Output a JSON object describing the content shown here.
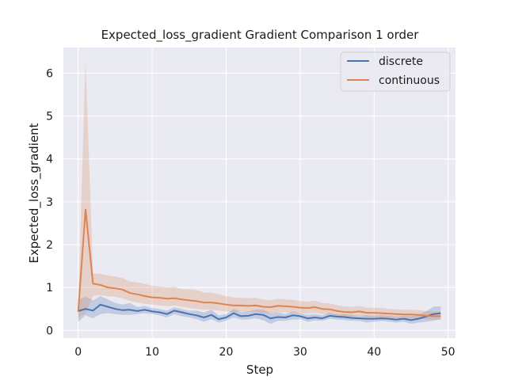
{
  "chart_data": {
    "type": "line",
    "title": "Expected_loss_gradient Gradient Comparison 1 order",
    "xlabel": "Step",
    "ylabel": "Expected_loss_gradient",
    "xlim": [
      -2,
      51
    ],
    "ylim": [
      -0.18,
      6.6
    ],
    "xticks": [
      0,
      10,
      20,
      30,
      40,
      50
    ],
    "yticks": [
      0,
      1,
      2,
      3,
      4,
      5,
      6
    ],
    "grid": true,
    "legend_position": "top-right",
    "colors": {
      "background": "#eaeaf2",
      "grid": "#ffffff",
      "discrete": "#4c72b0",
      "continuous": "#dd8452"
    },
    "series": [
      {
        "name": "discrete",
        "x": [
          0,
          1,
          2,
          3,
          4,
          5,
          6,
          7,
          8,
          9,
          10,
          11,
          12,
          13,
          14,
          15,
          16,
          17,
          18,
          19,
          20,
          21,
          22,
          23,
          24,
          25,
          26,
          27,
          28,
          29,
          30,
          31,
          32,
          33,
          34,
          35,
          36,
          37,
          38,
          39,
          40,
          41,
          42,
          43,
          44,
          45,
          46,
          47,
          48,
          49
        ],
        "values": [
          0.45,
          0.5,
          0.46,
          0.6,
          0.55,
          0.5,
          0.47,
          0.48,
          0.45,
          0.48,
          0.44,
          0.42,
          0.38,
          0.46,
          0.42,
          0.38,
          0.35,
          0.3,
          0.36,
          0.26,
          0.3,
          0.4,
          0.33,
          0.34,
          0.38,
          0.36,
          0.28,
          0.31,
          0.3,
          0.35,
          0.33,
          0.28,
          0.3,
          0.28,
          0.34,
          0.32,
          0.31,
          0.29,
          0.28,
          0.27,
          0.27,
          0.28,
          0.27,
          0.25,
          0.27,
          0.24,
          0.27,
          0.32,
          0.38,
          0.4
        ],
        "lower": [
          0.2,
          0.35,
          0.28,
          0.38,
          0.4,
          0.38,
          0.36,
          0.36,
          0.38,
          0.4,
          0.38,
          0.35,
          0.3,
          0.38,
          0.33,
          0.3,
          0.26,
          0.2,
          0.26,
          0.18,
          0.22,
          0.3,
          0.25,
          0.26,
          0.28,
          0.24,
          0.15,
          0.22,
          0.22,
          0.25,
          0.26,
          0.2,
          0.23,
          0.22,
          0.27,
          0.25,
          0.24,
          0.22,
          0.22,
          0.18,
          0.2,
          0.22,
          0.2,
          0.18,
          0.2,
          0.15,
          0.18,
          0.2,
          0.22,
          0.26
        ],
        "upper": [
          0.72,
          0.78,
          0.7,
          0.8,
          0.72,
          0.64,
          0.6,
          0.64,
          0.54,
          0.57,
          0.52,
          0.5,
          0.46,
          0.54,
          0.5,
          0.46,
          0.46,
          0.42,
          0.48,
          0.35,
          0.38,
          0.5,
          0.42,
          0.44,
          0.48,
          0.48,
          0.4,
          0.42,
          0.38,
          0.44,
          0.4,
          0.36,
          0.38,
          0.35,
          0.41,
          0.38,
          0.38,
          0.36,
          0.34,
          0.35,
          0.34,
          0.35,
          0.34,
          0.32,
          0.34,
          0.33,
          0.36,
          0.44,
          0.55,
          0.56
        ]
      },
      {
        "name": "continuous",
        "x": [
          0,
          1,
          2,
          3,
          4,
          5,
          6,
          7,
          8,
          9,
          10,
          11,
          12,
          13,
          14,
          15,
          16,
          17,
          18,
          19,
          20,
          21,
          22,
          23,
          24,
          25,
          26,
          27,
          28,
          29,
          30,
          31,
          32,
          33,
          34,
          35,
          36,
          37,
          38,
          39,
          40,
          41,
          42,
          43,
          44,
          45,
          46,
          47,
          48,
          49
        ],
        "values": [
          0.43,
          2.82,
          1.09,
          1.06,
          1.0,
          0.98,
          0.95,
          0.87,
          0.84,
          0.8,
          0.77,
          0.76,
          0.74,
          0.75,
          0.72,
          0.7,
          0.68,
          0.65,
          0.65,
          0.63,
          0.6,
          0.58,
          0.58,
          0.57,
          0.58,
          0.55,
          0.54,
          0.57,
          0.56,
          0.55,
          0.53,
          0.52,
          0.54,
          0.5,
          0.49,
          0.45,
          0.43,
          0.42,
          0.44,
          0.41,
          0.41,
          0.4,
          0.39,
          0.38,
          0.37,
          0.37,
          0.36,
          0.34,
          0.33,
          0.33
        ],
        "lower": [
          0.3,
          0.4,
          0.8,
          0.82,
          0.8,
          0.78,
          0.75,
          0.68,
          0.65,
          0.62,
          0.6,
          0.58,
          0.56,
          0.58,
          0.55,
          0.52,
          0.5,
          0.48,
          0.48,
          0.46,
          0.44,
          0.42,
          0.43,
          0.42,
          0.44,
          0.41,
          0.4,
          0.42,
          0.42,
          0.41,
          0.4,
          0.39,
          0.41,
          0.38,
          0.37,
          0.34,
          0.33,
          0.32,
          0.34,
          0.31,
          0.31,
          0.3,
          0.3,
          0.29,
          0.28,
          0.28,
          0.27,
          0.26,
          0.25,
          0.25
        ],
        "upper": [
          0.6,
          6.3,
          1.32,
          1.32,
          1.28,
          1.26,
          1.22,
          1.14,
          1.12,
          1.08,
          1.04,
          1.02,
          1.0,
          1.02,
          0.96,
          0.96,
          0.94,
          0.88,
          0.88,
          0.84,
          0.8,
          0.77,
          0.76,
          0.75,
          0.76,
          0.72,
          0.7,
          0.74,
          0.72,
          0.71,
          0.68,
          0.67,
          0.69,
          0.64,
          0.63,
          0.58,
          0.56,
          0.55,
          0.57,
          0.53,
          0.53,
          0.52,
          0.5,
          0.49,
          0.48,
          0.48,
          0.47,
          0.45,
          0.44,
          0.43
        ]
      }
    ]
  }
}
